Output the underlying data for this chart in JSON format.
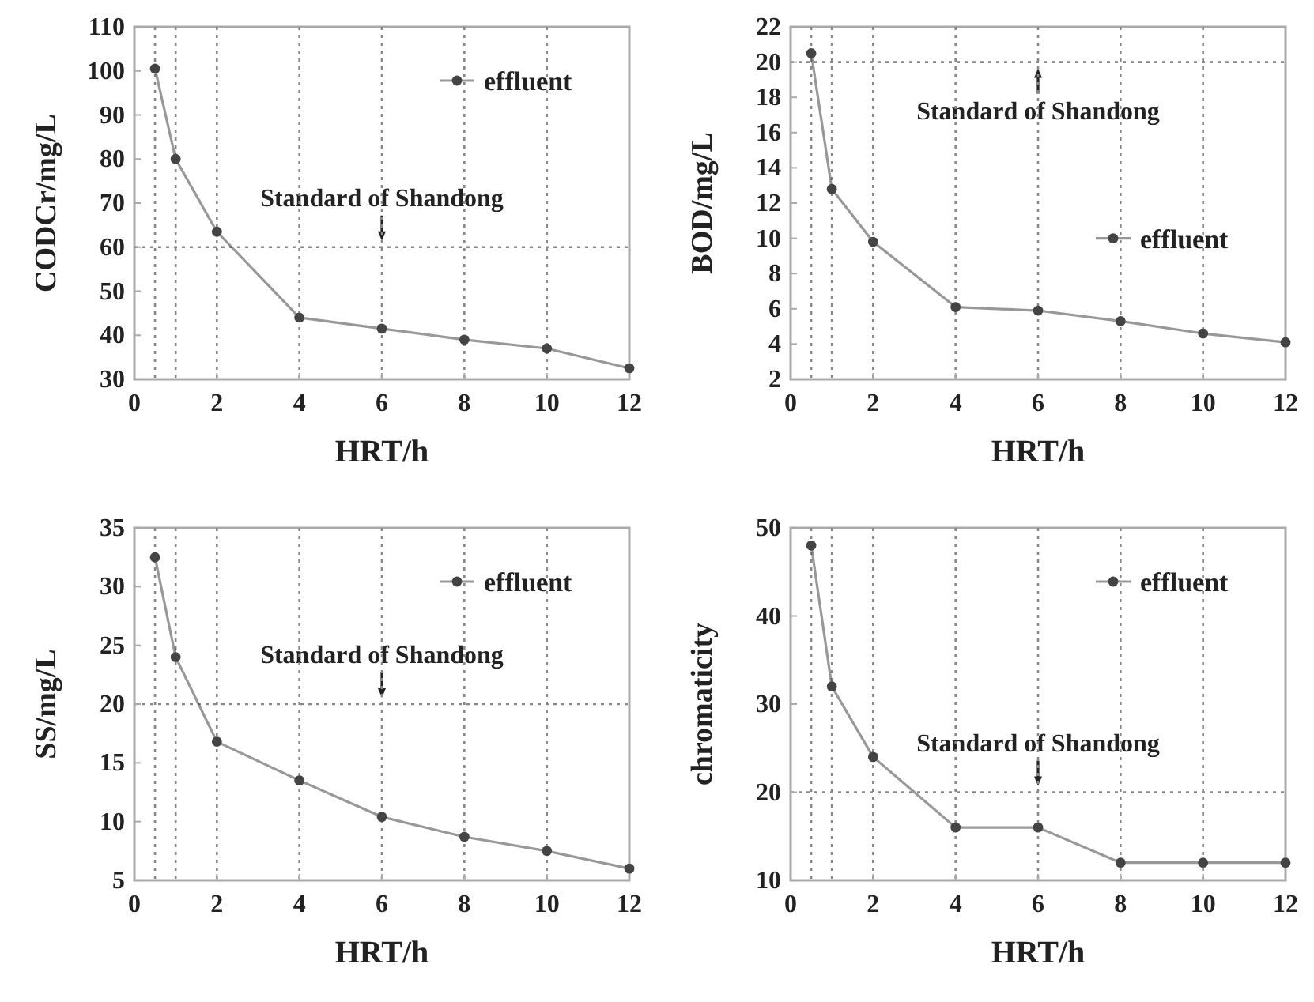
{
  "chart_data": [
    {
      "type": "line",
      "ylabel": "CODCr/mg/L",
      "xlabel": "HRT/h",
      "x": [
        0.5,
        1,
        2,
        4,
        6,
        8,
        10,
        12
      ],
      "xlim": [
        0,
        12
      ],
      "xticks": [
        0,
        2,
        4,
        6,
        8,
        10,
        12
      ],
      "ylim": [
        30,
        110
      ],
      "yticks": [
        30,
        40,
        50,
        60,
        70,
        80,
        90,
        100,
        110
      ],
      "marker": "circle",
      "legend": "top right",
      "series": [
        {
          "name": "effluent",
          "color": "#444444",
          "values": [
            100.5,
            80,
            63.5,
            44,
            41.5,
            39,
            37,
            32.5
          ]
        }
      ],
      "ref_lines": [
        {
          "axis": "y",
          "value": 60,
          "label": "Standard of Shandong",
          "line_style": "dotted"
        },
        {
          "axis": "x",
          "value": 0.5,
          "line_style": "dotted"
        },
        {
          "axis": "x",
          "value": 1,
          "line_style": "dotted"
        },
        {
          "axis": "x",
          "value": 2,
          "line_style": "dotted"
        },
        {
          "axis": "x",
          "value": 4,
          "line_style": "dotted"
        },
        {
          "axis": "x",
          "value": 6,
          "line_style": "dotted"
        },
        {
          "axis": "x",
          "value": 8,
          "line_style": "dotted"
        },
        {
          "axis": "x",
          "value": 10,
          "line_style": "dotted"
        }
      ]
    },
    {
      "type": "line",
      "ylabel": "BOD/mg/L",
      "xlabel": "HRT/h",
      "x": [
        0.5,
        1,
        2,
        4,
        6,
        8,
        10,
        12
      ],
      "xlim": [
        0,
        12
      ],
      "xticks": [
        0,
        2,
        4,
        6,
        8,
        10,
        12
      ],
      "ylim": [
        2,
        22
      ],
      "yticks": [
        2,
        4,
        6,
        8,
        10,
        12,
        14,
        16,
        18,
        20,
        22
      ],
      "marker": "circle",
      "legend": "right",
      "series": [
        {
          "name": "effluent",
          "color": "#444444",
          "values": [
            20.5,
            12.8,
            9.8,
            6.1,
            5.9,
            5.3,
            4.6,
            4.1
          ]
        }
      ],
      "ref_lines": [
        {
          "axis": "y",
          "value": 20,
          "label": "Standard of Shandong",
          "line_style": "dotted"
        },
        {
          "axis": "x",
          "value": 0.5,
          "line_style": "dotted"
        },
        {
          "axis": "x",
          "value": 1,
          "line_style": "dotted"
        },
        {
          "axis": "x",
          "value": 2,
          "line_style": "dotted"
        },
        {
          "axis": "x",
          "value": 4,
          "line_style": "dotted"
        },
        {
          "axis": "x",
          "value": 6,
          "line_style": "dotted"
        },
        {
          "axis": "x",
          "value": 8,
          "line_style": "dotted"
        },
        {
          "axis": "x",
          "value": 10,
          "line_style": "dotted"
        }
      ]
    },
    {
      "type": "line",
      "ylabel": "SS/mg/L",
      "xlabel": "HRT/h",
      "x": [
        0.5,
        1,
        2,
        4,
        6,
        8,
        10,
        12
      ],
      "xlim": [
        0,
        12
      ],
      "xticks": [
        0,
        2,
        4,
        6,
        8,
        10,
        12
      ],
      "ylim": [
        5,
        35
      ],
      "yticks": [
        5,
        10,
        15,
        20,
        25,
        30,
        35
      ],
      "marker": "circle",
      "legend": "top right",
      "series": [
        {
          "name": "effluent",
          "color": "#444444",
          "values": [
            32.5,
            24,
            16.8,
            13.5,
            10.4,
            8.7,
            7.5,
            6
          ]
        }
      ],
      "ref_lines": [
        {
          "axis": "y",
          "value": 20,
          "label": "Standard of Shandong",
          "line_style": "dotted"
        },
        {
          "axis": "x",
          "value": 0.5,
          "line_style": "dotted"
        },
        {
          "axis": "x",
          "value": 1,
          "line_style": "dotted"
        },
        {
          "axis": "x",
          "value": 2,
          "line_style": "dotted"
        },
        {
          "axis": "x",
          "value": 4,
          "line_style": "dotted"
        },
        {
          "axis": "x",
          "value": 6,
          "line_style": "dotted"
        },
        {
          "axis": "x",
          "value": 8,
          "line_style": "dotted"
        },
        {
          "axis": "x",
          "value": 10,
          "line_style": "dotted"
        }
      ]
    },
    {
      "type": "line",
      "ylabel": "chromaticity",
      "xlabel": "HRT/h",
      "x": [
        0.5,
        1,
        2,
        4,
        6,
        8,
        10,
        12
      ],
      "xlim": [
        0,
        12
      ],
      "xticks": [
        0,
        2,
        4,
        6,
        8,
        10,
        12
      ],
      "ylim": [
        10,
        50
      ],
      "yticks": [
        10,
        20,
        30,
        40,
        50
      ],
      "marker": "circle",
      "legend": "top right",
      "series": [
        {
          "name": "effluent",
          "color": "#444444",
          "values": [
            48,
            32,
            24,
            16,
            16,
            12,
            12,
            12
          ]
        }
      ],
      "ref_lines": [
        {
          "axis": "y",
          "value": 20,
          "label": "Standard of Shandong",
          "line_style": "dotted"
        },
        {
          "axis": "x",
          "value": 0.5,
          "line_style": "dotted"
        },
        {
          "axis": "x",
          "value": 1,
          "line_style": "dotted"
        },
        {
          "axis": "x",
          "value": 2,
          "line_style": "dotted"
        },
        {
          "axis": "x",
          "value": 4,
          "line_style": "dotted"
        },
        {
          "axis": "x",
          "value": 6,
          "line_style": "dotted"
        },
        {
          "axis": "x",
          "value": 8,
          "line_style": "dotted"
        },
        {
          "axis": "x",
          "value": 10,
          "line_style": "dotted"
        }
      ]
    }
  ]
}
